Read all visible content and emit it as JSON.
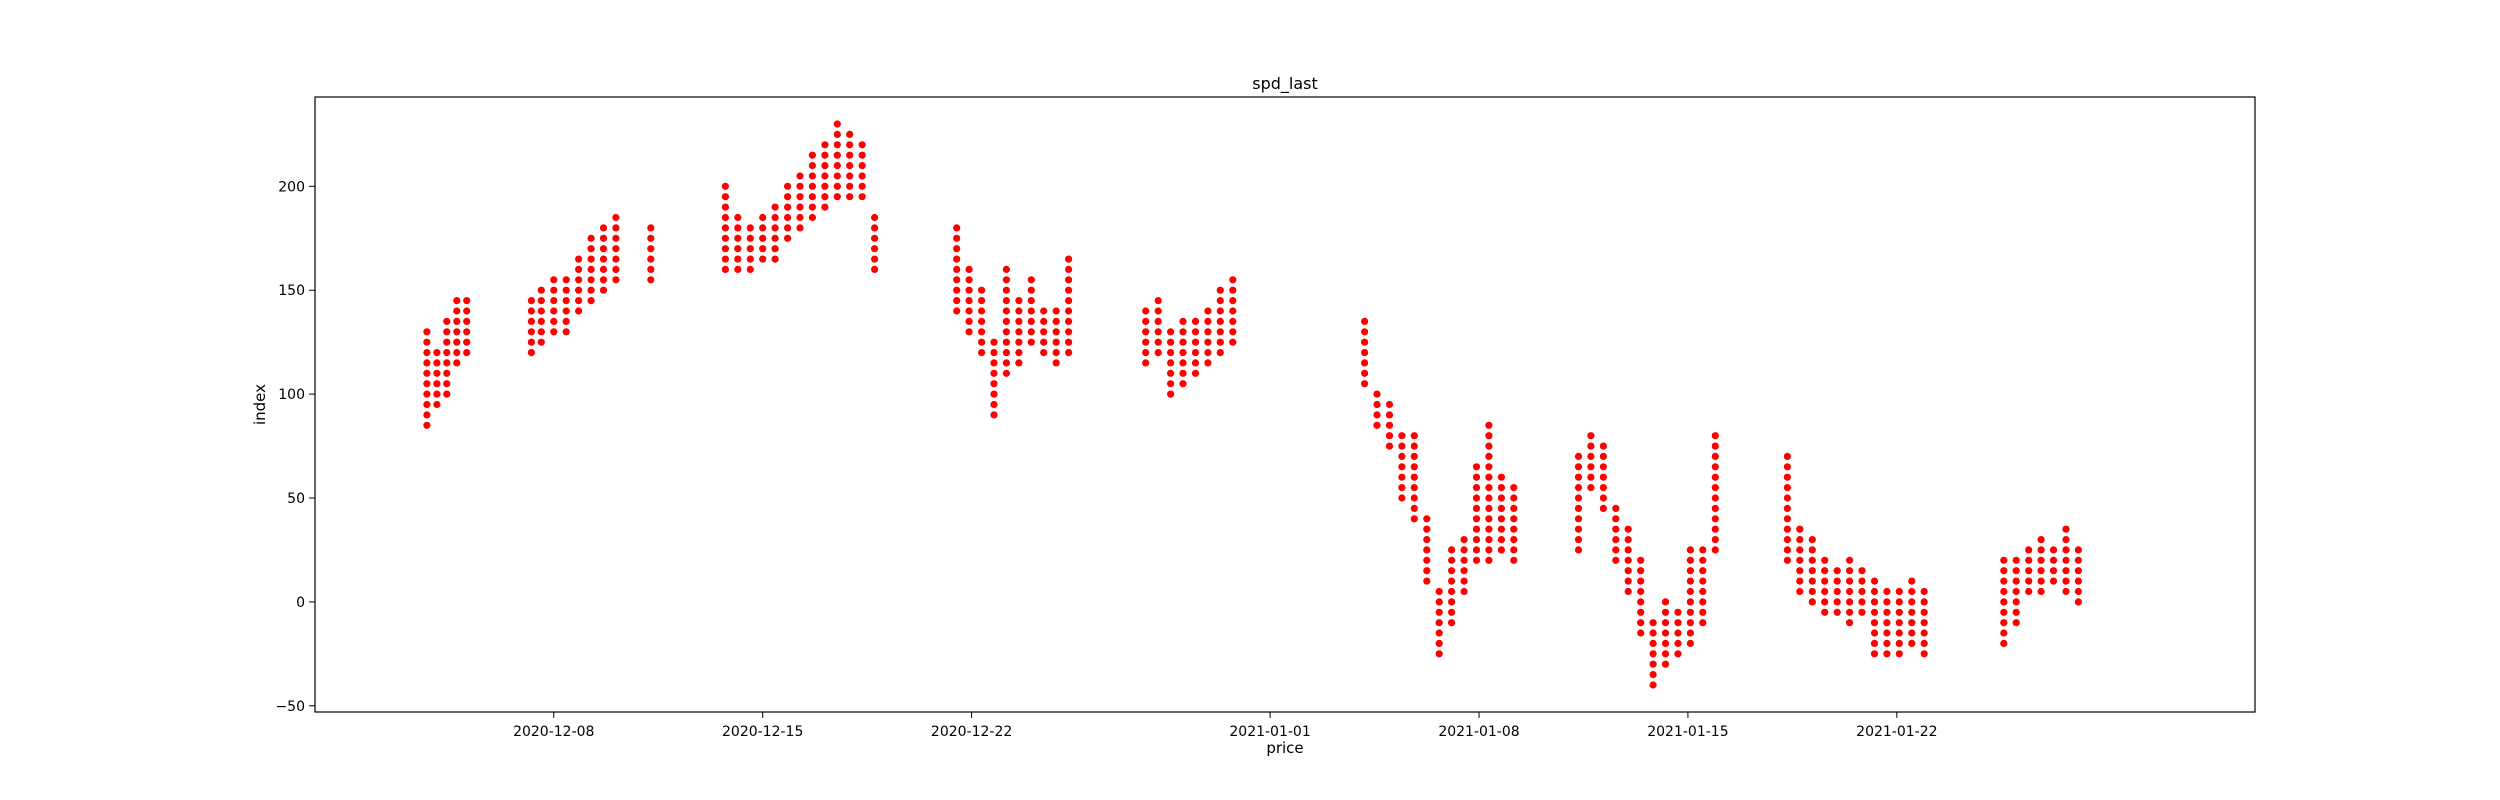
{
  "chart_data": {
    "type": "scatter",
    "title": "spd_last",
    "xlabel": "price",
    "ylabel": "index",
    "marker_color": "#ff0000",
    "xlim": [
      "2020-11-30",
      "2021-02-03"
    ],
    "ylim": [
      -53,
      243
    ],
    "x_ticks": [
      "2020-12-08",
      "2020-12-15",
      "2020-12-22",
      "2021-01-01",
      "2021-01-08",
      "2021-01-15",
      "2021-01-22"
    ],
    "y_ticks": [
      -50,
      0,
      50,
      100,
      150,
      200
    ],
    "grid": false,
    "legend": "none",
    "series": [
      {
        "points": [
          [
            "2020-12-03 18:00",
            85
          ],
          [
            "2020-12-03 18:00",
            130
          ],
          [
            "2020-12-04 02:00",
            95
          ],
          [
            "2020-12-04 02:00",
            120
          ],
          [
            "2020-12-04 10:00",
            100
          ],
          [
            "2020-12-04 10:00",
            135
          ],
          [
            "2020-12-04 18:00",
            115
          ],
          [
            "2020-12-04 18:00",
            145
          ],
          [
            "2020-12-05 02:00",
            120
          ],
          [
            "2020-12-05 02:00",
            145
          ],
          [
            "2020-12-07 06:00",
            120
          ],
          [
            "2020-12-07 06:00",
            145
          ],
          [
            "2020-12-07 14:00",
            125
          ],
          [
            "2020-12-07 14:00",
            150
          ],
          [
            "2020-12-08 00:00",
            130
          ],
          [
            "2020-12-08 00:00",
            155
          ],
          [
            "2020-12-08 10:00",
            130
          ],
          [
            "2020-12-08 10:00",
            155
          ],
          [
            "2020-12-08 20:00",
            140
          ],
          [
            "2020-12-08 20:00",
            165
          ],
          [
            "2020-12-09 06:00",
            145
          ],
          [
            "2020-12-09 06:00",
            175
          ],
          [
            "2020-12-09 16:00",
            150
          ],
          [
            "2020-12-09 16:00",
            180
          ],
          [
            "2020-12-10 02:00",
            155
          ],
          [
            "2020-12-10 02:00",
            185
          ],
          [
            "2020-12-11 06:00",
            155
          ],
          [
            "2020-12-11 06:00",
            180
          ],
          [
            "2020-12-13 18:00",
            160
          ],
          [
            "2020-12-13 18:00",
            200
          ],
          [
            "2020-12-14 04:00",
            160
          ],
          [
            "2020-12-14 04:00",
            185
          ],
          [
            "2020-12-14 14:00",
            160
          ],
          [
            "2020-12-14 14:00",
            180
          ],
          [
            "2020-12-15 00:00",
            165
          ],
          [
            "2020-12-15 00:00",
            185
          ],
          [
            "2020-12-15 10:00",
            165
          ],
          [
            "2020-12-15 10:00",
            190
          ],
          [
            "2020-12-15 20:00",
            175
          ],
          [
            "2020-12-15 20:00",
            200
          ],
          [
            "2020-12-16 06:00",
            180
          ],
          [
            "2020-12-16 06:00",
            205
          ],
          [
            "2020-12-16 16:00",
            185
          ],
          [
            "2020-12-16 16:00",
            215
          ],
          [
            "2020-12-17 02:00",
            190
          ],
          [
            "2020-12-17 02:00",
            220
          ],
          [
            "2020-12-17 12:00",
            195
          ],
          [
            "2020-12-17 12:00",
            230
          ],
          [
            "2020-12-17 22:00",
            195
          ],
          [
            "2020-12-17 22:00",
            225
          ],
          [
            "2020-12-18 08:00",
            195
          ],
          [
            "2020-12-18 08:00",
            220
          ],
          [
            "2020-12-18 18:00",
            160
          ],
          [
            "2020-12-18 18:00",
            185
          ],
          [
            "2020-12-21 12:00",
            140
          ],
          [
            "2020-12-21 12:00",
            180
          ],
          [
            "2020-12-21 22:00",
            130
          ],
          [
            "2020-12-21 22:00",
            160
          ],
          [
            "2020-12-22 08:00",
            120
          ],
          [
            "2020-12-22 08:00",
            150
          ],
          [
            "2020-12-22 18:00",
            90
          ],
          [
            "2020-12-22 18:00",
            125
          ],
          [
            "2020-12-23 04:00",
            110
          ],
          [
            "2020-12-23 04:00",
            160
          ],
          [
            "2020-12-23 14:00",
            115
          ],
          [
            "2020-12-23 14:00",
            145
          ],
          [
            "2020-12-24 00:00",
            125
          ],
          [
            "2020-12-24 00:00",
            155
          ],
          [
            "2020-12-24 10:00",
            120
          ],
          [
            "2020-12-24 10:00",
            140
          ],
          [
            "2020-12-24 20:00",
            115
          ],
          [
            "2020-12-24 20:00",
            140
          ],
          [
            "2020-12-25 06:00",
            120
          ],
          [
            "2020-12-25 06:00",
            165
          ],
          [
            "2020-12-27 20:00",
            115
          ],
          [
            "2020-12-27 20:00",
            140
          ],
          [
            "2020-12-28 06:00",
            120
          ],
          [
            "2020-12-28 06:00",
            145
          ],
          [
            "2020-12-28 16:00",
            100
          ],
          [
            "2020-12-28 16:00",
            130
          ],
          [
            "2020-12-29 02:00",
            105
          ],
          [
            "2020-12-29 02:00",
            135
          ],
          [
            "2020-12-29 12:00",
            110
          ],
          [
            "2020-12-29 12:00",
            135
          ],
          [
            "2020-12-29 22:00",
            115
          ],
          [
            "2020-12-29 22:00",
            140
          ],
          [
            "2020-12-30 08:00",
            120
          ],
          [
            "2020-12-30 08:00",
            150
          ],
          [
            "2020-12-30 18:00",
            125
          ],
          [
            "2020-12-30 18:00",
            155
          ],
          [
            "2021-01-04 04:00",
            105
          ],
          [
            "2021-01-04 04:00",
            135
          ],
          [
            "2021-01-04 14:00",
            85
          ],
          [
            "2021-01-04 14:00",
            100
          ],
          [
            "2021-01-05 00:00",
            75
          ],
          [
            "2021-01-05 00:00",
            95
          ],
          [
            "2021-01-05 10:00",
            50
          ],
          [
            "2021-01-05 10:00",
            80
          ],
          [
            "2021-01-05 20:00",
            40
          ],
          [
            "2021-01-05 20:00",
            80
          ],
          [
            "2021-01-06 06:00",
            10
          ],
          [
            "2021-01-06 06:00",
            40
          ],
          [
            "2021-01-06 16:00",
            -25
          ],
          [
            "2021-01-06 16:00",
            5
          ],
          [
            "2021-01-07 02:00",
            -10
          ],
          [
            "2021-01-07 02:00",
            25
          ],
          [
            "2021-01-07 12:00",
            5
          ],
          [
            "2021-01-07 12:00",
            30
          ],
          [
            "2021-01-07 22:00",
            20
          ],
          [
            "2021-01-07 22:00",
            65
          ],
          [
            "2021-01-08 08:00",
            20
          ],
          [
            "2021-01-08 08:00",
            85
          ],
          [
            "2021-01-08 18:00",
            25
          ],
          [
            "2021-01-08 18:00",
            60
          ],
          [
            "2021-01-09 04:00",
            20
          ],
          [
            "2021-01-09 04:00",
            55
          ],
          [
            "2021-01-11 08:00",
            25
          ],
          [
            "2021-01-11 08:00",
            70
          ],
          [
            "2021-01-11 18:00",
            55
          ],
          [
            "2021-01-11 18:00",
            80
          ],
          [
            "2021-01-12 04:00",
            45
          ],
          [
            "2021-01-12 04:00",
            75
          ],
          [
            "2021-01-12 14:00",
            20
          ],
          [
            "2021-01-12 14:00",
            45
          ],
          [
            "2021-01-13 00:00",
            5
          ],
          [
            "2021-01-13 00:00",
            35
          ],
          [
            "2021-01-13 10:00",
            -15
          ],
          [
            "2021-01-13 10:00",
            20
          ],
          [
            "2021-01-13 20:00",
            -40
          ],
          [
            "2021-01-13 20:00",
            -10
          ],
          [
            "2021-01-14 06:00",
            -30
          ],
          [
            "2021-01-14 06:00",
            0
          ],
          [
            "2021-01-14 16:00",
            -25
          ],
          [
            "2021-01-14 16:00",
            -5
          ],
          [
            "2021-01-15 02:00",
            -20
          ],
          [
            "2021-01-15 02:00",
            25
          ],
          [
            "2021-01-15 12:00",
            -10
          ],
          [
            "2021-01-15 12:00",
            25
          ],
          [
            "2021-01-15 22:00",
            25
          ],
          [
            "2021-01-15 22:00",
            80
          ],
          [
            "2021-01-18 08:00",
            20
          ],
          [
            "2021-01-18 08:00",
            70
          ],
          [
            "2021-01-18 18:00",
            5
          ],
          [
            "2021-01-18 18:00",
            35
          ],
          [
            "2021-01-19 04:00",
            0
          ],
          [
            "2021-01-19 04:00",
            30
          ],
          [
            "2021-01-19 14:00",
            -5
          ],
          [
            "2021-01-19 14:00",
            20
          ],
          [
            "2021-01-20 00:00",
            -5
          ],
          [
            "2021-01-20 00:00",
            15
          ],
          [
            "2021-01-20 10:00",
            -10
          ],
          [
            "2021-01-20 10:00",
            20
          ],
          [
            "2021-01-20 20:00",
            -5
          ],
          [
            "2021-01-20 20:00",
            15
          ],
          [
            "2021-01-21 06:00",
            -25
          ],
          [
            "2021-01-21 06:00",
            10
          ],
          [
            "2021-01-21 16:00",
            -25
          ],
          [
            "2021-01-21 16:00",
            5
          ],
          [
            "2021-01-22 02:00",
            -25
          ],
          [
            "2021-01-22 02:00",
            5
          ],
          [
            "2021-01-22 12:00",
            -20
          ],
          [
            "2021-01-22 12:00",
            10
          ],
          [
            "2021-01-22 22:00",
            -25
          ],
          [
            "2021-01-22 22:00",
            5
          ],
          [
            "2021-01-25 14:00",
            -20
          ],
          [
            "2021-01-25 14:00",
            20
          ],
          [
            "2021-01-26 00:00",
            -10
          ],
          [
            "2021-01-26 00:00",
            20
          ],
          [
            "2021-01-26 10:00",
            5
          ],
          [
            "2021-01-26 10:00",
            25
          ],
          [
            "2021-01-26 20:00",
            5
          ],
          [
            "2021-01-26 20:00",
            30
          ],
          [
            "2021-01-27 06:00",
            10
          ],
          [
            "2021-01-27 06:00",
            25
          ],
          [
            "2021-01-27 16:00",
            5
          ],
          [
            "2021-01-27 16:00",
            35
          ],
          [
            "2021-01-28 02:00",
            0
          ],
          [
            "2021-01-28 02:00",
            25
          ]
        ]
      }
    ]
  }
}
